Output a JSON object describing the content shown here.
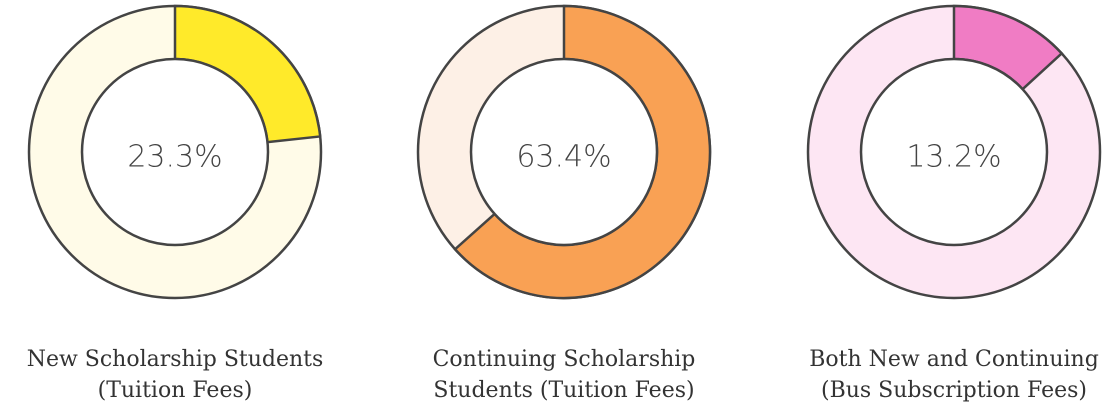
{
  "chart_data": [
    {
      "type": "donut",
      "title": [
        "New Scholarship Students",
        "(Tuition Fees)"
      ],
      "values": [
        23.3
      ],
      "value_labels": [
        "23.3%"
      ],
      "color": "#ffea2a",
      "track_color": "#fffbe8"
    },
    {
      "type": "donut",
      "title": [
        "Continuing Scholarship",
        "Students (Tuition Fees)"
      ],
      "values": [
        63.4
      ],
      "value_labels": [
        "63.4%"
      ],
      "color": "#f9a154",
      "track_color": "#fdf0e6"
    },
    {
      "type": "donut",
      "title": [
        "Both New and Continuing",
        "(Bus Subscription Fees)"
      ],
      "values": [
        13.2
      ],
      "value_labels": [
        "13.2%"
      ],
      "color": "#f07cc4",
      "track_color": "#fde6f3"
    }
  ]
}
